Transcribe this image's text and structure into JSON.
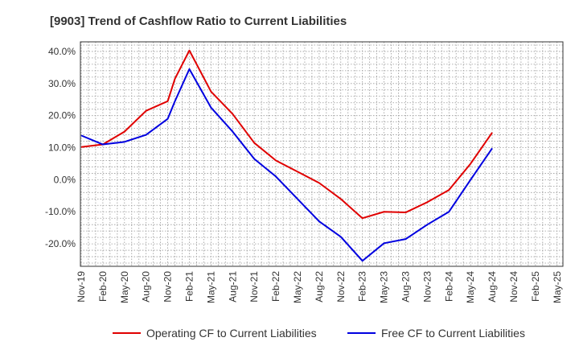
{
  "chart_data": {
    "type": "line",
    "title": "[9903]  Trend of Cashflow Ratio to Current Liabilities",
    "xlabel": "",
    "ylabel": "",
    "ylim": [
      -27,
      43
    ],
    "yticks": [
      "-20.0%",
      "-10.0%",
      "0.0%",
      "10.0%",
      "20.0%",
      "30.0%",
      "40.0%"
    ],
    "ytick_values": [
      -20,
      -10,
      0,
      10,
      20,
      30,
      40
    ],
    "xtick_labels": [
      "Nov-19",
      "Feb-20",
      "May-20",
      "Aug-20",
      "Nov-20",
      "Feb-21",
      "May-21",
      "Aug-21",
      "Nov-21",
      "Feb-22",
      "May-22",
      "Aug-22",
      "Nov-22",
      "Feb-23",
      "May-23",
      "Aug-23",
      "Nov-23",
      "Feb-24",
      "May-24",
      "Aug-24",
      "Nov-24",
      "Feb-25",
      "May-25"
    ],
    "grid": true,
    "legend_position": "bottom",
    "x": [
      "Nov-19",
      "Dec-19",
      "Jan-20",
      "Feb-20",
      "Mar-20",
      "Apr-20",
      "May-20",
      "Jun-20",
      "Jul-20",
      "Aug-20",
      "Sep-20",
      "Oct-20",
      "Nov-20",
      "Dec-20",
      "Jan-21",
      "Feb-21",
      "Mar-21",
      "Apr-21",
      "May-21",
      "Jun-21",
      "Jul-21",
      "Aug-21",
      "Sep-21",
      "Oct-21",
      "Nov-21",
      "Dec-21",
      "Jan-22",
      "Feb-22",
      "Mar-22",
      "Apr-22",
      "May-22",
      "Jun-22",
      "Jul-22",
      "Aug-22",
      "Sep-22",
      "Oct-22",
      "Nov-22",
      "Dec-22",
      "Jan-23",
      "Feb-23",
      "Mar-23",
      "Apr-23",
      "May-23",
      "Jun-23",
      "Jul-23",
      "Aug-23",
      "Sep-23",
      "Oct-23",
      "Nov-23",
      "Dec-23",
      "Jan-24",
      "Feb-24",
      "Mar-24",
      "Apr-24",
      "May-24",
      "Jun-24",
      "Jul-24",
      "Aug-24"
    ],
    "series": [
      {
        "name": "Operating CF to Current Liabilities",
        "color": "#e00000",
        "points": [
          [
            0,
            10.2
          ],
          [
            3,
            11.0
          ],
          [
            6,
            15.0
          ],
          [
            9,
            21.5
          ],
          [
            12,
            24.5
          ],
          [
            13,
            31.5
          ],
          [
            15,
            40.3
          ],
          [
            18,
            27.5
          ],
          [
            21,
            20.5
          ],
          [
            24,
            11.5
          ],
          [
            27,
            6.0
          ],
          [
            30,
            2.5
          ],
          [
            33,
            -1.0
          ],
          [
            36,
            -6.0
          ],
          [
            39,
            -12.0
          ],
          [
            42,
            -10.0
          ],
          [
            45,
            -10.2
          ],
          [
            48,
            -7.0
          ],
          [
            51,
            -3.2
          ],
          [
            54,
            5.0
          ],
          [
            57,
            14.7
          ]
        ]
      },
      {
        "name": "Free CF to Current Liabilities",
        "color": "#0000e0",
        "points": [
          [
            0,
            13.8
          ],
          [
            3,
            11.0
          ],
          [
            6,
            11.8
          ],
          [
            9,
            14.0
          ],
          [
            12,
            19.0
          ],
          [
            13,
            24.5
          ],
          [
            15,
            34.5
          ],
          [
            18,
            22.5
          ],
          [
            21,
            15.0
          ],
          [
            24,
            6.5
          ],
          [
            27,
            1.0
          ],
          [
            30,
            -6.0
          ],
          [
            33,
            -13.0
          ],
          [
            36,
            -17.8
          ],
          [
            39,
            -25.3
          ],
          [
            42,
            -19.8
          ],
          [
            45,
            -18.5
          ],
          [
            48,
            -14.0
          ],
          [
            51,
            -10.0
          ],
          [
            54,
            0.0
          ],
          [
            57,
            9.8
          ]
        ]
      }
    ]
  }
}
